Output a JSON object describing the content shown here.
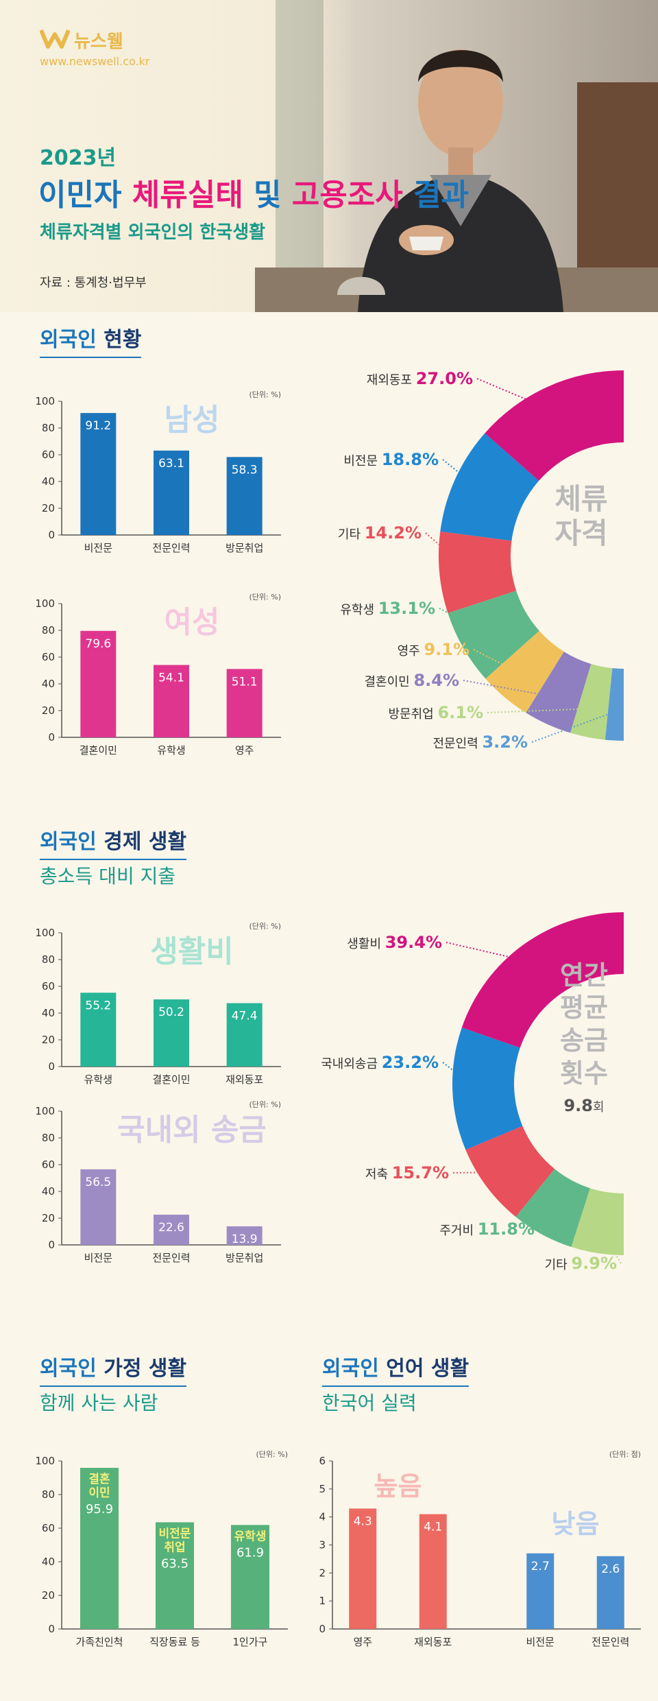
{
  "header": {
    "logo": "뉴스웰",
    "url": "www.newswell.co.kr",
    "year": "2023년",
    "title_parts": [
      "이민자 ",
      "체류실태",
      " 및 ",
      "고용조사",
      " 결과"
    ],
    "subtitle": "체류자격별 외국인의 한국생활",
    "source": "자료 : 통계청·법무부"
  },
  "sections": {
    "status": {
      "title_a": "외국인",
      "title_b": "현황"
    },
    "economy": {
      "title_a": "외국인",
      "title_b": "경제 생활",
      "sub": "총소득 대비 지출"
    },
    "family": {
      "title_a": "외국인",
      "title_b": "가정 생활",
      "sub": "함께 사는 사람"
    },
    "language": {
      "title_a": "외국인",
      "title_b": "언어 생활",
      "sub": "한국어 실력"
    }
  },
  "chart_data": [
    {
      "id": "male",
      "type": "bar",
      "title": "남성",
      "unit": "(단위: %)",
      "ylim": [
        0,
        100
      ],
      "yticks": [
        0,
        20,
        40,
        60,
        80,
        100
      ],
      "categories": [
        "비전문",
        "전문인력",
        "방문취업"
      ],
      "values": [
        91.2,
        63.1,
        58.3
      ],
      "color": "#1b75bb",
      "titleColor": "#bcd6ee"
    },
    {
      "id": "female",
      "type": "bar",
      "title": "여성",
      "unit": "(단위: %)",
      "ylim": [
        0,
        100
      ],
      "yticks": [
        0,
        20,
        40,
        60,
        80,
        100
      ],
      "categories": [
        "결혼이민",
        "유학생",
        "영주"
      ],
      "values": [
        79.6,
        54.1,
        51.1
      ],
      "color": "#e0358f",
      "titleColor": "#f6c7df"
    },
    {
      "id": "visa",
      "type": "pie",
      "title": "체류자격",
      "labels": [
        "재외동포",
        "비전문",
        "기타",
        "유학생",
        "영주",
        "결혼이민",
        "방문취업",
        "전문인력"
      ],
      "values": [
        27.0,
        18.8,
        14.2,
        13.1,
        9.1,
        8.4,
        6.1,
        3.2
      ],
      "colors": [
        "#d4147e",
        "#1f86d2",
        "#e8505b",
        "#5fb88a",
        "#f0c15a",
        "#8f7fc0",
        "#b6d785",
        "#5b9bd5"
      ]
    },
    {
      "id": "living",
      "type": "bar",
      "title": "생활비",
      "unit": "(단위: %)",
      "ylim": [
        0,
        100
      ],
      "yticks": [
        0,
        20,
        40,
        60,
        80,
        100
      ],
      "categories": [
        "유학생",
        "결혼이민",
        "재외동포"
      ],
      "values": [
        55.2,
        50.2,
        47.4
      ],
      "color": "#26b597",
      "titleColor": "#a9e3d3"
    },
    {
      "id": "remit",
      "type": "bar",
      "title": "국내외 송금",
      "unit": "(단위: %)",
      "ylim": [
        0,
        100
      ],
      "yticks": [
        0,
        20,
        40,
        60,
        80,
        100
      ],
      "categories": [
        "비전문",
        "전문인력",
        "방문취업"
      ],
      "values": [
        56.5,
        22.6,
        13.9
      ],
      "color": "#9d8cc4",
      "titleColor": "#d4cce6"
    },
    {
      "id": "spend",
      "type": "pie",
      "title": "연간평균송금횟수",
      "center_value": "9.8",
      "center_unit": "회",
      "labels": [
        "생활비",
        "국내외송금",
        "저축",
        "주거비",
        "기타"
      ],
      "values": [
        39.4,
        23.2,
        15.7,
        11.8,
        9.9
      ],
      "colors": [
        "#d4147e",
        "#1f86d2",
        "#e8505b",
        "#5fb88a",
        "#b6d785"
      ]
    },
    {
      "id": "family",
      "type": "bar",
      "unit": "(단위: %)",
      "ylim": [
        0,
        100
      ],
      "yticks": [
        0,
        20,
        40,
        60,
        80,
        100
      ],
      "categories": [
        "가족친인척",
        "직장동료 등",
        "1인가구"
      ],
      "values": [
        95.9,
        63.5,
        61.9
      ],
      "bar_labels": [
        "결혼이민",
        "비전문취업",
        "유학생"
      ],
      "color": "#56b27a"
    },
    {
      "id": "korean",
      "type": "bar",
      "unit": "(단위: 점)",
      "ylim": [
        0,
        6
      ],
      "yticks": [
        0,
        1,
        2,
        3,
        4,
        5,
        6
      ],
      "categories": [
        "영주",
        "재외동포",
        "비전문",
        "전문인력"
      ],
      "values": [
        4.3,
        4.1,
        2.7,
        2.6
      ],
      "colors": [
        "#ec6a62",
        "#ec6a62",
        "#4c8fd0",
        "#4c8fd0"
      ],
      "group_labels": [
        {
          "text": "높음",
          "color": "#f7b9b5"
        },
        {
          "text": "낮음",
          "color": "#b9cfee"
        }
      ]
    }
  ]
}
